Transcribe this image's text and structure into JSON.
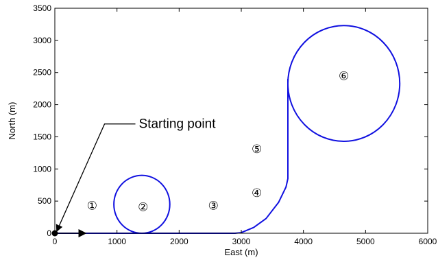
{
  "chart_data": {
    "type": "line",
    "xlabel": "East (m)",
    "ylabel": "North (m)",
    "xlim": [
      0,
      6000
    ],
    "ylim": [
      0,
      3500
    ],
    "xticks": [
      0,
      1000,
      2000,
      3000,
      4000,
      5000,
      6000
    ],
    "yticks": [
      0,
      500,
      1000,
      1500,
      2000,
      2500,
      3000,
      3500
    ],
    "grid": false,
    "colors": {
      "path": "#1010e0",
      "axis": "#000000"
    },
    "series": [
      {
        "x": [
          0,
          500,
          1000,
          1400,
          2000,
          2900,
          3000,
          3200,
          3400,
          3600,
          3720,
          3750,
          3750
        ],
        "y": [
          0,
          0,
          0,
          0,
          0,
          0,
          10,
          90,
          230,
          480,
          720,
          850,
          2400
        ]
      }
    ],
    "circles": [
      {
        "cx": 1400,
        "cy": 450,
        "r": 450
      },
      {
        "cx": 4650,
        "cy": 2330,
        "r": 900
      }
    ],
    "start_point": {
      "x": 0,
      "y": 0
    },
    "direction_arrow": {
      "from": [
        0,
        0
      ],
      "to": [
        500,
        0
      ]
    },
    "annotation": {
      "text": "Starting point",
      "pointer_from": [
        800,
        1700
      ],
      "pointer_to": [
        30,
        30
      ]
    },
    "markers": [
      {
        "label": "①",
        "x": 600,
        "y": 430
      },
      {
        "label": "②",
        "x": 1420,
        "y": 410
      },
      {
        "label": "③",
        "x": 2550,
        "y": 430
      },
      {
        "label": "④",
        "x": 3250,
        "y": 630
      },
      {
        "label": "⑤",
        "x": 3250,
        "y": 1310
      },
      {
        "label": "⑥",
        "x": 4650,
        "y": 2450
      }
    ]
  }
}
